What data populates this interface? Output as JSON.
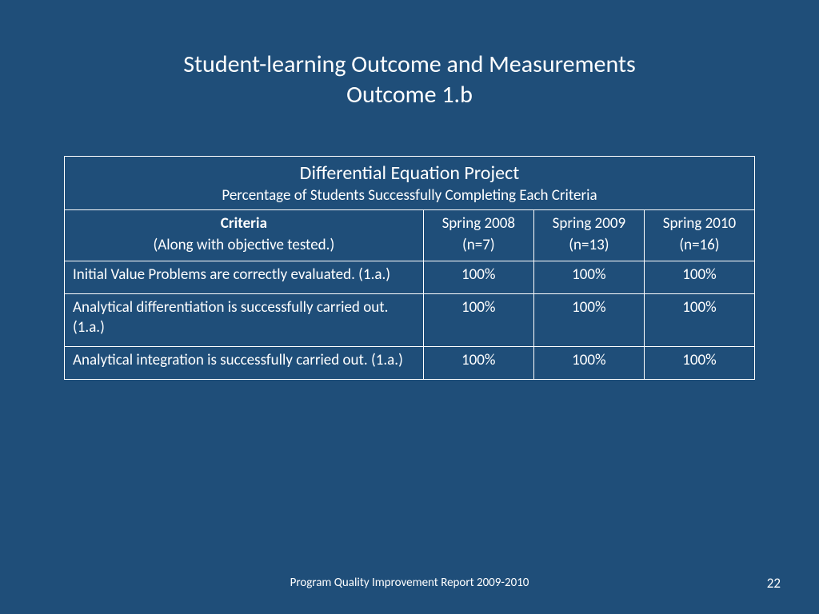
{
  "slide": {
    "title_line1": "Student-learning Outcome and Measurements",
    "title_line2": "Outcome 1.b",
    "background_color": "#1f4e79",
    "text_color": "#ffffff"
  },
  "table": {
    "type": "table",
    "title": "Differential Equation Project",
    "subtitle": "Percentage of Students Successfully Completing Each Criteria",
    "border_color": "#ffffff",
    "columns": {
      "criteria_label": "Criteria",
      "criteria_sublabel": "(Along with objective tested.)",
      "periods": [
        {
          "label": "Spring 2008",
          "n": "(n=7)"
        },
        {
          "label": "Spring 2009",
          "n": "(n=13)"
        },
        {
          "label": "Spring 2010",
          "n": "(n=16)"
        }
      ]
    },
    "rows": [
      {
        "criteria": "Initial Value Problems are correctly evaluated. (1.a.)",
        "values": [
          "100%",
          "100%",
          "100%"
        ]
      },
      {
        "criteria": "Analytical differentiation is successfully carried out. (1.a.)",
        "values": [
          "100%",
          "100%",
          "100%"
        ]
      },
      {
        "criteria": "Analytical integration is successfully carried out. (1.a.)",
        "values": [
          "100%",
          "100%",
          "100%"
        ]
      }
    ]
  },
  "footer": {
    "text": "Program Quality Improvement Report 2009-2010",
    "page_number": "22"
  }
}
